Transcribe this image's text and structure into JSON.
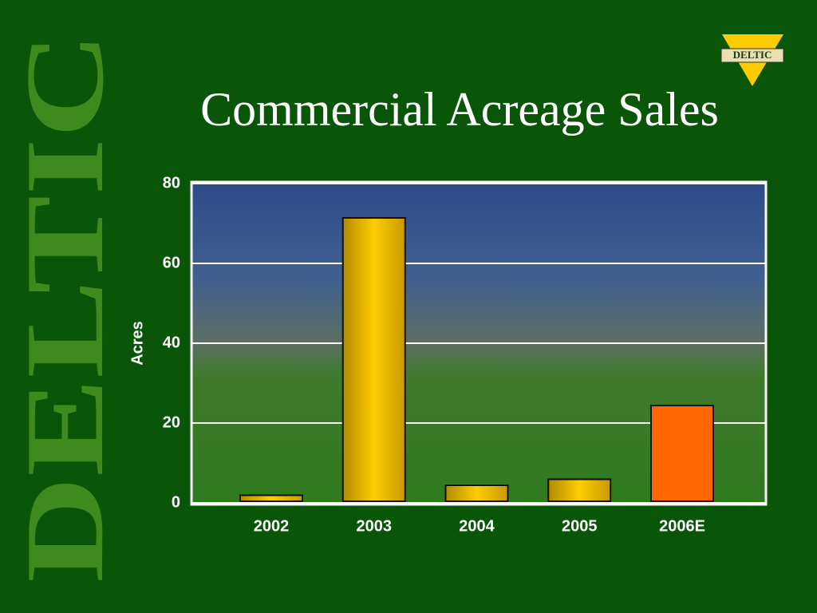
{
  "brand_watermark": "DELTIC",
  "logo_text": "DELTIC",
  "chart_data": {
    "type": "bar",
    "title": "Commercial Acreage Sales",
    "y_label": "Acres",
    "categories": [
      "2002",
      "2003",
      "2004",
      "2005",
      "2006E"
    ],
    "values": [
      1.5,
      71,
      4,
      5.5,
      24
    ],
    "colors": [
      "#ffcc00",
      "#ffcc00",
      "#ffcc00",
      "#ffcc00",
      "#ff6600"
    ],
    "ylim": [
      0,
      80
    ],
    "yticks": [
      0,
      20,
      40,
      60,
      80
    ],
    "grid": true
  }
}
